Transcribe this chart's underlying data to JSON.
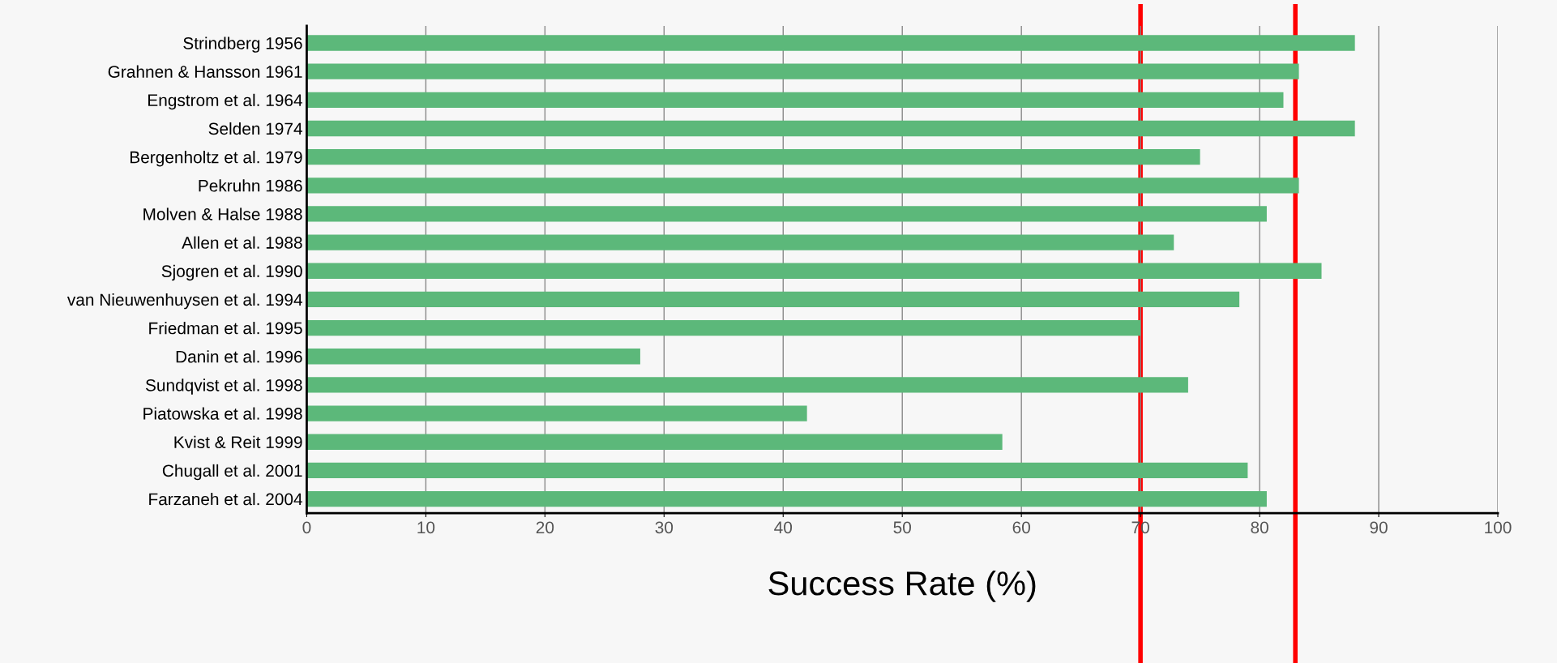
{
  "chart_data": {
    "type": "bar",
    "orientation": "horizontal",
    "xlabel": "Success Rate (%)",
    "categories": [
      "Strindberg 1956",
      "Grahnen & Hansson 1961",
      "Engstrom et al. 1964",
      "Selden 1974",
      "Bergenholtz et al. 1979",
      "Pekruhn 1986",
      "Molven & Halse 1988",
      "Allen et al. 1988",
      "Sjogren et al. 1990",
      "van Nieuwenhuysen et al. 1994",
      "Friedman et al. 1995",
      "Danin et al. 1996",
      "Sundqvist et al. 1998",
      "Piatowska et al. 1998",
      "Kvist & Reit 1999",
      "Chugall et al. 2001",
      "Farzaneh et al. 2004"
    ],
    "values": [
      88,
      83.3,
      82,
      88,
      75,
      83.3,
      80.6,
      72.8,
      85.2,
      78.3,
      70,
      28,
      74,
      42,
      58.4,
      79,
      80.6
    ],
    "color": "#5cb87a",
    "xlim": [
      0,
      100
    ],
    "xticks": [
      0,
      10,
      20,
      30,
      40,
      50,
      60,
      70,
      80,
      90,
      100
    ],
    "grid": "x",
    "ref_lines": [
      {
        "axis": "x",
        "value": 70,
        "color": "#ff0000"
      },
      {
        "axis": "x",
        "value": 83,
        "color": "#ff0000"
      }
    ]
  }
}
